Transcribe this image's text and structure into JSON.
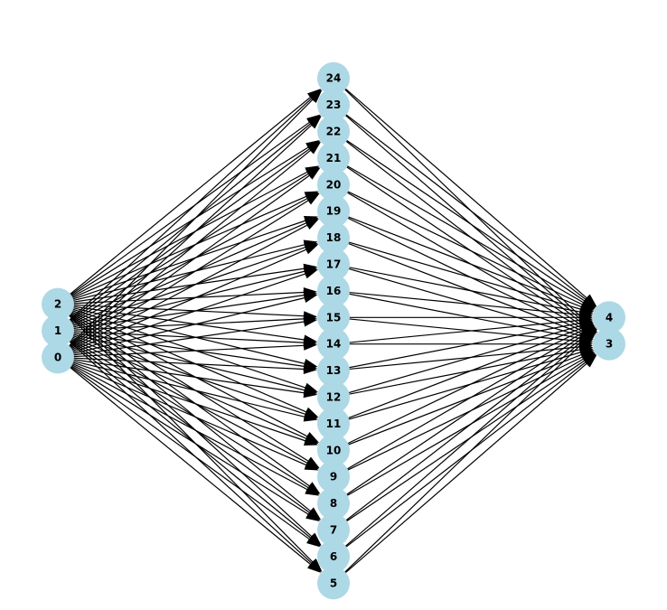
{
  "diagram": {
    "type": "directed-graph",
    "node_color": "#add8e6",
    "edge_color": "#000000",
    "label_color": "#000000",
    "layers": {
      "input": [
        "0",
        "1",
        "2"
      ],
      "hidden": [
        "5",
        "6",
        "7",
        "8",
        "9",
        "10",
        "11",
        "12",
        "13",
        "14",
        "15",
        "16",
        "17",
        "18",
        "19",
        "20",
        "21",
        "22",
        "23",
        "24"
      ],
      "output": [
        "3",
        "4"
      ]
    },
    "edges_rule": "every input node connects to every hidden node; every hidden node connects to every output node"
  }
}
